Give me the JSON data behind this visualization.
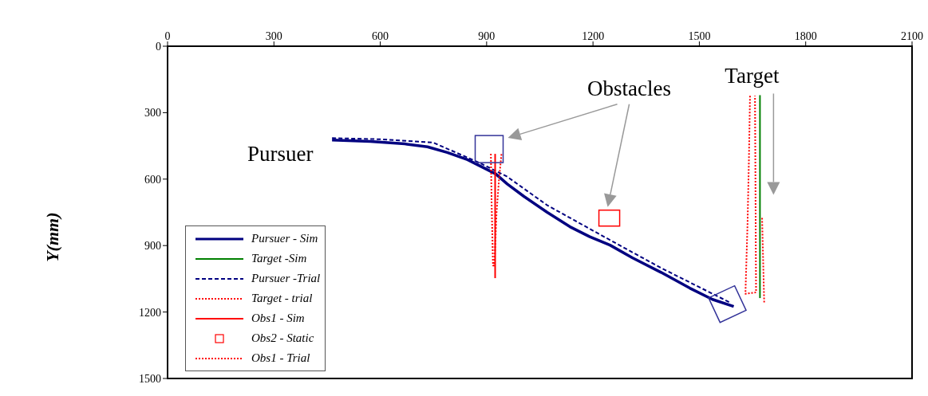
{
  "chart_data": {
    "type": "line",
    "ylabel": "Y(mm)",
    "xlim": [
      0,
      2100
    ],
    "xticks": [
      0,
      300,
      600,
      900,
      1200,
      1500,
      1800,
      2100
    ],
    "ylim": [
      1500,
      0
    ],
    "yticks": [
      0,
      300,
      600,
      900,
      1200,
      1500
    ],
    "legend": "bottom left",
    "marker": "none",
    "series": [
      {
        "name": "Pursuer - Sim",
        "color": "#000080",
        "line_style": "solid",
        "x": [
          464,
          572,
          669,
          733,
          789,
          846,
          894,
          926,
          958,
          1006,
          1071,
          1135,
          1191,
          1248,
          1312,
          1392,
          1473,
          1537,
          1597
        ],
        "values": [
          424,
          430,
          441,
          454,
          480,
          512,
          551,
          577,
          622,
          679,
          750,
          815,
          860,
          898,
          956,
          1021,
          1092,
          1143,
          1175
        ]
      },
      {
        "name": "Target -Sim",
        "color": "#008000",
        "line_style": "solid",
        "x": [
          1671,
          1671
        ],
        "values": [
          221,
          1137
        ]
      },
      {
        "name": "Pursuer -Trial",
        "color": "#000080",
        "line_style": "dashed",
        "x": [
          464,
          600,
          749,
          878,
          958,
          1071,
          1231,
          1392,
          1585
        ],
        "values": [
          415,
          420,
          435,
          525,
          589,
          718,
          860,
          1001,
          1156
        ]
      },
      {
        "name": "Target - trial",
        "color": "#ff0000",
        "line_style": "dotted",
        "x": [
          1643,
          1640,
          1636,
          1630,
          1660,
          1657
        ],
        "values": [
          224,
          500,
          800,
          1118,
          1111,
          224
        ]
      },
      {
        "name": "Obs1 - Sim",
        "color": "#ff0000",
        "line_style": "solid",
        "x": [
          924,
          924
        ],
        "values": [
          486,
          1047
        ]
      },
      {
        "name": "Obs2 - Static",
        "type": "scatter",
        "color": "#ff0000",
        "marker": "square",
        "x": [
          1246
        ],
        "values": [
          776
        ]
      },
      {
        "name": "Obs1 - Trial",
        "color": "#ff0000",
        "line_style": "dotted",
        "x": [
          912,
          914,
          918,
          922,
          928,
          935,
          942
        ],
        "values": [
          486,
          700,
          990,
          990,
          750,
          600,
          486
        ]
      },
      {
        "color": "#ff0000",
        "line_style": "dotted",
        "x": [
          1677,
          1683
        ],
        "values": [
          775,
          1161
        ]
      }
    ],
    "annotations": [
      "Pursuer",
      "Obstacles",
      "Target"
    ]
  }
}
